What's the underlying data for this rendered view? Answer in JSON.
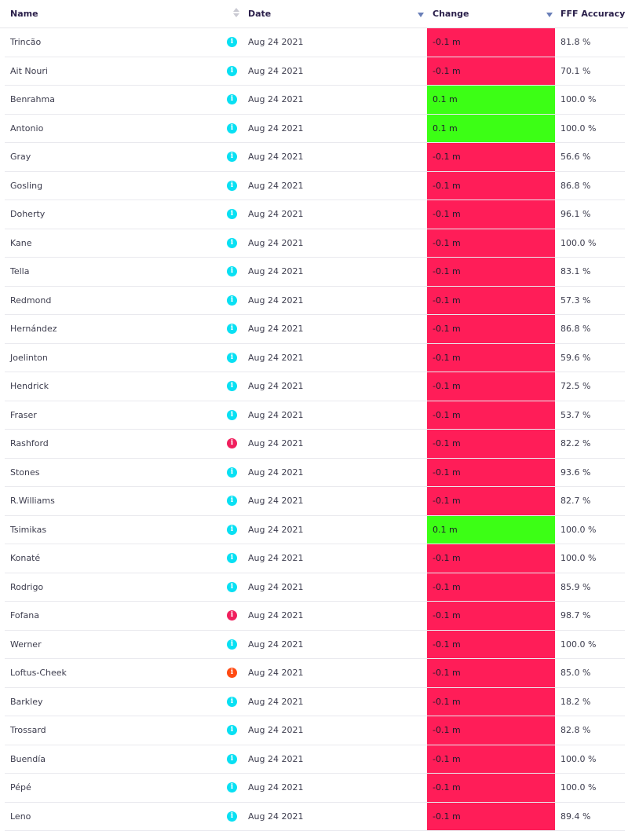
{
  "columns": {
    "name": "Name",
    "date": "Date",
    "change": "Change",
    "accuracy": "FFF Accuracy"
  },
  "colors": {
    "negative": "#ff1d58",
    "positive": "#3cff15",
    "info_cyan": "#08e0f3",
    "info_pink": "#f01f5d",
    "info_orange": "#ff4a12"
  },
  "rows": [
    {
      "name": "Trincão",
      "icon": "info-icon",
      "icon_color": "cyan",
      "date": "Aug 24 2021",
      "change": "-0.1 m",
      "direction": "down",
      "accuracy": "81.8 %"
    },
    {
      "name": "Ait Nouri",
      "icon": "info-icon",
      "icon_color": "cyan",
      "date": "Aug 24 2021",
      "change": "-0.1 m",
      "direction": "down",
      "accuracy": "70.1 %"
    },
    {
      "name": "Benrahma",
      "icon": "info-icon",
      "icon_color": "cyan",
      "date": "Aug 24 2021",
      "change": "0.1 m",
      "direction": "up",
      "accuracy": "100.0 %"
    },
    {
      "name": "Antonio",
      "icon": "info-icon",
      "icon_color": "cyan",
      "date": "Aug 24 2021",
      "change": "0.1 m",
      "direction": "up",
      "accuracy": "100.0 %"
    },
    {
      "name": "Gray",
      "icon": "info-icon",
      "icon_color": "cyan",
      "date": "Aug 24 2021",
      "change": "-0.1 m",
      "direction": "down",
      "accuracy": "56.6 %"
    },
    {
      "name": "Gosling",
      "icon": "info-icon",
      "icon_color": "cyan",
      "date": "Aug 24 2021",
      "change": "-0.1 m",
      "direction": "down",
      "accuracy": "86.8 %"
    },
    {
      "name": "Doherty",
      "icon": "info-icon",
      "icon_color": "cyan",
      "date": "Aug 24 2021",
      "change": "-0.1 m",
      "direction": "down",
      "accuracy": "96.1 %"
    },
    {
      "name": "Kane",
      "icon": "info-icon",
      "icon_color": "cyan",
      "date": "Aug 24 2021",
      "change": "-0.1 m",
      "direction": "down",
      "accuracy": "100.0 %"
    },
    {
      "name": "Tella",
      "icon": "info-icon",
      "icon_color": "cyan",
      "date": "Aug 24 2021",
      "change": "-0.1 m",
      "direction": "down",
      "accuracy": "83.1 %"
    },
    {
      "name": "Redmond",
      "icon": "info-icon",
      "icon_color": "cyan",
      "date": "Aug 24 2021",
      "change": "-0.1 m",
      "direction": "down",
      "accuracy": "57.3 %"
    },
    {
      "name": "Hernández",
      "icon": "info-icon",
      "icon_color": "cyan",
      "date": "Aug 24 2021",
      "change": "-0.1 m",
      "direction": "down",
      "accuracy": "86.8 %"
    },
    {
      "name": "Joelinton",
      "icon": "info-icon",
      "icon_color": "cyan",
      "date": "Aug 24 2021",
      "change": "-0.1 m",
      "direction": "down",
      "accuracy": "59.6 %"
    },
    {
      "name": "Hendrick",
      "icon": "info-icon",
      "icon_color": "cyan",
      "date": "Aug 24 2021",
      "change": "-0.1 m",
      "direction": "down",
      "accuracy": "72.5 %"
    },
    {
      "name": "Fraser",
      "icon": "info-icon",
      "icon_color": "cyan",
      "date": "Aug 24 2021",
      "change": "-0.1 m",
      "direction": "down",
      "accuracy": "53.7 %"
    },
    {
      "name": "Rashford",
      "icon": "info-icon",
      "icon_color": "pink",
      "date": "Aug 24 2021",
      "change": "-0.1 m",
      "direction": "down",
      "accuracy": "82.2 %"
    },
    {
      "name": "Stones",
      "icon": "info-icon",
      "icon_color": "cyan",
      "date": "Aug 24 2021",
      "change": "-0.1 m",
      "direction": "down",
      "accuracy": "93.6 %"
    },
    {
      "name": "R.Williams",
      "icon": "info-icon",
      "icon_color": "cyan",
      "date": "Aug 24 2021",
      "change": "-0.1 m",
      "direction": "down",
      "accuracy": "82.7 %"
    },
    {
      "name": "Tsimikas",
      "icon": "info-icon",
      "icon_color": "cyan",
      "date": "Aug 24 2021",
      "change": "0.1 m",
      "direction": "up",
      "accuracy": "100.0 %"
    },
    {
      "name": "Konaté",
      "icon": "info-icon",
      "icon_color": "cyan",
      "date": "Aug 24 2021",
      "change": "-0.1 m",
      "direction": "down",
      "accuracy": "100.0 %"
    },
    {
      "name": "Rodrigo",
      "icon": "info-icon",
      "icon_color": "cyan",
      "date": "Aug 24 2021",
      "change": "-0.1 m",
      "direction": "down",
      "accuracy": "85.9 %"
    },
    {
      "name": "Fofana",
      "icon": "info-icon",
      "icon_color": "pink",
      "date": "Aug 24 2021",
      "change": "-0.1 m",
      "direction": "down",
      "accuracy": "98.7 %"
    },
    {
      "name": "Werner",
      "icon": "info-icon",
      "icon_color": "cyan",
      "date": "Aug 24 2021",
      "change": "-0.1 m",
      "direction": "down",
      "accuracy": "100.0 %"
    },
    {
      "name": "Loftus-Cheek",
      "icon": "info-icon",
      "icon_color": "orange",
      "date": "Aug 24 2021",
      "change": "-0.1 m",
      "direction": "down",
      "accuracy": "85.0 %"
    },
    {
      "name": "Barkley",
      "icon": "info-icon",
      "icon_color": "cyan",
      "date": "Aug 24 2021",
      "change": "-0.1 m",
      "direction": "down",
      "accuracy": "18.2 %"
    },
    {
      "name": "Trossard",
      "icon": "info-icon",
      "icon_color": "cyan",
      "date": "Aug 24 2021",
      "change": "-0.1 m",
      "direction": "down",
      "accuracy": "82.8 %"
    },
    {
      "name": "Buendía",
      "icon": "info-icon",
      "icon_color": "cyan",
      "date": "Aug 24 2021",
      "change": "-0.1 m",
      "direction": "down",
      "accuracy": "100.0 %"
    },
    {
      "name": "Pépé",
      "icon": "info-icon",
      "icon_color": "cyan",
      "date": "Aug 24 2021",
      "change": "-0.1 m",
      "direction": "down",
      "accuracy": "100.0 %"
    },
    {
      "name": "Leno",
      "icon": "info-icon",
      "icon_color": "cyan",
      "date": "Aug 24 2021",
      "change": "-0.1 m",
      "direction": "down",
      "accuracy": "89.4 %"
    }
  ]
}
